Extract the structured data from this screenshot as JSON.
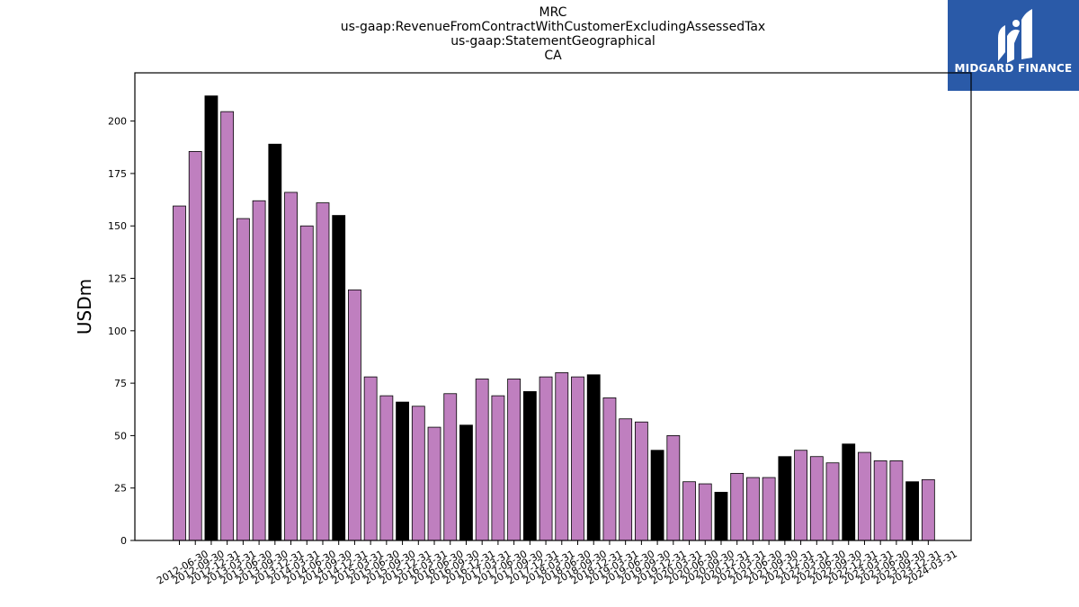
{
  "titles": [
    "MRC",
    "us-gaap:RevenueFromContractWithCustomerExcludingAssessedTax",
    "us-gaap:StatementGeographical",
    "CA"
  ],
  "logo": {
    "text": "MIDGARD FINANCE",
    "icon": "midgard-finance-logo-icon"
  },
  "chart_data": {
    "type": "bar",
    "ylabel": "USDm",
    "xlabel": "",
    "ylim": [
      0,
      223
    ],
    "yticks": [
      0,
      25,
      50,
      75,
      100,
      125,
      150,
      175,
      200
    ],
    "colors": {
      "quarter": "#bf7fbf",
      "fiscal_year_end": "#000000"
    },
    "categories": [
      "2012-06-30",
      "2012-09-30",
      "2012-12-31",
      "2013-03-31",
      "2013-06-30",
      "2013-09-30",
      "2013-12-31",
      "2014-03-31",
      "2014-06-30",
      "2014-09-30",
      "2014-12-31",
      "2015-03-31",
      "2015-06-30",
      "2015-09-30",
      "2015-12-31",
      "2016-03-31",
      "2016-06-30",
      "2016-09-30",
      "2016-12-31",
      "2017-03-31",
      "2017-06-30",
      "2017-09-30",
      "2017-12-31",
      "2018-03-31",
      "2018-06-30",
      "2018-09-30",
      "2018-12-31",
      "2019-03-31",
      "2019-06-30",
      "2019-09-30",
      "2019-12-31",
      "2020-03-31",
      "2020-06-30",
      "2020-09-30",
      "2020-12-31",
      "2021-03-31",
      "2021-06-30",
      "2021-09-30",
      "2021-12-31",
      "2022-03-31",
      "2022-06-30",
      "2022-09-30",
      "2022-12-31",
      "2023-03-31",
      "2023-06-30",
      "2023-09-30",
      "2023-12-31",
      "2024-03-31"
    ],
    "values": [
      159.5,
      185.5,
      212,
      204.5,
      153.5,
      162,
      189,
      166,
      150,
      161,
      155,
      119.5,
      78,
      69,
      66,
      64,
      54,
      70,
      55,
      77,
      69,
      77,
      71,
      78,
      80,
      78,
      79,
      68,
      58,
      56.5,
      43,
      50,
      28,
      27,
      23,
      32,
      30,
      30,
      40,
      43,
      40,
      37,
      46,
      42,
      38,
      38,
      28,
      29
    ],
    "highlight": [
      false,
      false,
      true,
      false,
      false,
      false,
      true,
      false,
      false,
      false,
      true,
      false,
      false,
      false,
      true,
      false,
      false,
      false,
      true,
      false,
      false,
      false,
      true,
      false,
      false,
      false,
      true,
      false,
      false,
      false,
      true,
      false,
      false,
      false,
      true,
      false,
      false,
      false,
      true,
      false,
      false,
      false,
      true,
      false,
      false,
      false,
      true,
      false
    ]
  }
}
